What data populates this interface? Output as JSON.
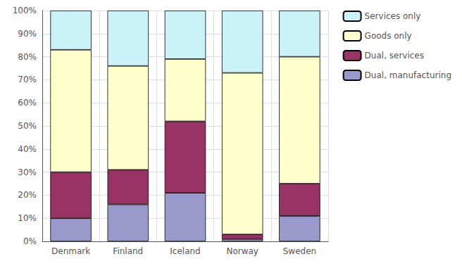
{
  "chart_data": {
    "type": "bar",
    "stacked": true,
    "categories": [
      "Denmark",
      "Finland",
      "Iceland",
      "Norway",
      "Sweden"
    ],
    "series": [
      {
        "name": "Dual, manufacturing",
        "color": "#9999cc",
        "values": [
          10,
          16,
          21,
          1,
          11
        ]
      },
      {
        "name": "Dual, services",
        "color": "#993366",
        "values": [
          20,
          15,
          31,
          2,
          14
        ]
      },
      {
        "name": "Goods only",
        "color": "#ffffcc",
        "values": [
          53,
          45,
          27,
          70,
          55
        ]
      },
      {
        "name": "Services only",
        "color": "#ccf2f9",
        "values": [
          17,
          24,
          21,
          27,
          20
        ]
      }
    ],
    "ylim": [
      0,
      100
    ],
    "yticks": [
      {
        "value": 0,
        "label": "0%"
      },
      {
        "value": 10,
        "label": "10%"
      },
      {
        "value": 20,
        "label": "20%"
      },
      {
        "value": 30,
        "label": "30%"
      },
      {
        "value": 40,
        "label": "40%"
      },
      {
        "value": 50,
        "label": "50%"
      },
      {
        "value": 60,
        "label": "60%"
      },
      {
        "value": 70,
        "label": "70%"
      },
      {
        "value": 80,
        "label": "80%"
      },
      {
        "value": 90,
        "label": "90%"
      },
      {
        "value": 100,
        "label": "100%"
      }
    ],
    "grid": true,
    "legend": "right"
  }
}
